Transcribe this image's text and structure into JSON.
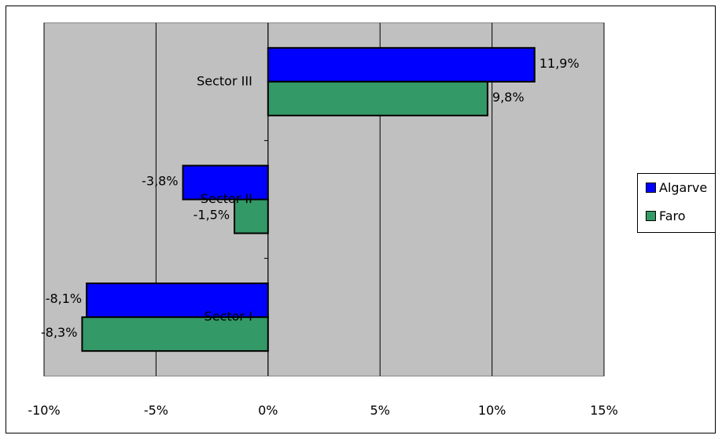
{
  "chart_data": {
    "type": "bar",
    "orientation": "horizontal",
    "categories": [
      "Sector III",
      "Sector II",
      "Sector I"
    ],
    "series": [
      {
        "name": "Algarve",
        "values": [
          11.9,
          -3.8,
          -8.1
        ],
        "labels": [
          "11,9%",
          "-3,8%",
          "-8,1%"
        ],
        "color": "#0000ff"
      },
      {
        "name": "Faro",
        "values": [
          9.8,
          -1.5,
          -8.3
        ],
        "labels": [
          "9,8%",
          "-1,5%",
          "-8,3%"
        ],
        "color": "#339966"
      }
    ],
    "x_ticks": [
      "-10%",
      "-5%",
      "0%",
      "5%",
      "10%",
      "15%"
    ],
    "xlim": [
      -10,
      15
    ],
    "plot_background": "#c0c0c0",
    "grid": true,
    "legend_position": "right"
  }
}
